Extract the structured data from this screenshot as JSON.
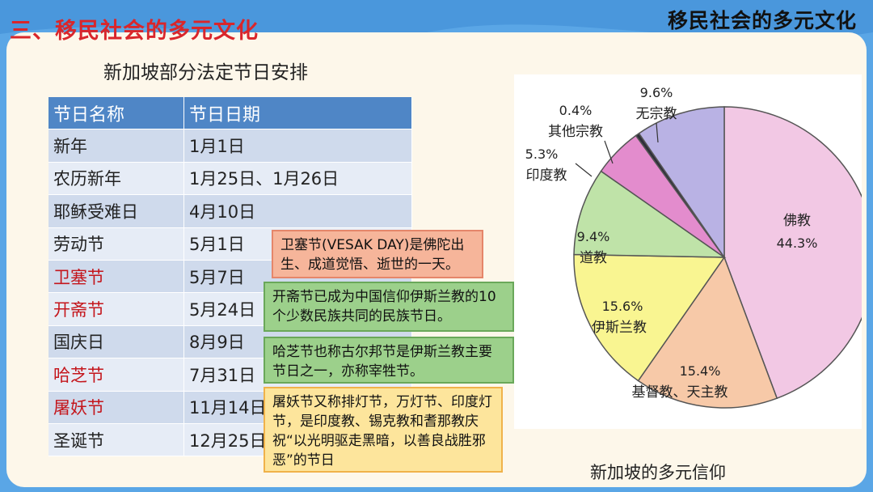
{
  "section_title": "三、移民社会的多元文化",
  "corner_title": "移民社会的多元文化",
  "table": {
    "caption": "新加坡部分法定节日安排",
    "headers": [
      "节日名称",
      "节日日期"
    ],
    "rows": [
      {
        "name": "新年",
        "date": "1月1日",
        "highlight": false
      },
      {
        "name": "农历新年",
        "date": "1月25日、1月26日",
        "highlight": false
      },
      {
        "name": "耶稣受难日",
        "date": "4月10日",
        "highlight": false
      },
      {
        "name": "劳动节",
        "date": "5月1日",
        "highlight": false
      },
      {
        "name": "卫塞节",
        "date": "5月7日",
        "highlight": true
      },
      {
        "name": "开斋节",
        "date": "5月24日",
        "highlight": true
      },
      {
        "name": "国庆日",
        "date": "8月9日",
        "highlight": false
      },
      {
        "name": "哈芝节",
        "date": "7月31日",
        "highlight": true
      },
      {
        "name": "屠妖节",
        "date": "11月14日",
        "highlight": true
      },
      {
        "name": "圣诞节",
        "date": "12月25日",
        "highlight": false
      }
    ]
  },
  "notes": {
    "vesak": "卫塞节(VESAK DAY)是佛陀出生、成道觉悟、逝世的一天。",
    "eid_fitr": "开斋节已成为中国信仰伊斯兰教的10个少数民族共同的民族节日。",
    "eid_adha": "哈芝节也称古尔邦节是伊斯兰教主要节日之一，亦称宰牲节。",
    "deepavali": "屠妖节又称排灯节，万灯节、印度灯节，是印度教、锡克教和耆那教庆祝“以光明驱走黑暗，以善良战胜邪恶”的节日"
  },
  "chart_data": {
    "type": "pie",
    "title": "",
    "caption": "新加坡的多元信仰",
    "slices": [
      {
        "label": "佛教",
        "value": 44.3,
        "value_text": "44.3%",
        "color": "#f2c8e4"
      },
      {
        "label": "基督教、天主教",
        "value": 15.4,
        "value_text": "15.4%",
        "color": "#f7c9a8"
      },
      {
        "label": "伊斯兰教",
        "value": 15.6,
        "value_text": "15.6%",
        "color": "#f9f591"
      },
      {
        "label": "道教",
        "value": 9.4,
        "value_text": "9.4%",
        "color": "#bfe3a8"
      },
      {
        "label": "印度教",
        "value": 5.3,
        "value_text": "5.3%",
        "color": "#e38ccd"
      },
      {
        "label": "其他宗教",
        "value": 0.4,
        "value_text": "0.4%",
        "color": "#2f2f3a"
      },
      {
        "label": "无宗教",
        "value": 9.6,
        "value_text": "9.6%",
        "color": "#b9b2e4"
      }
    ]
  },
  "colors": {
    "accent_red": "#d9262b",
    "header_blue": "#4f86c6",
    "background_blue": "#5aa6e6"
  }
}
